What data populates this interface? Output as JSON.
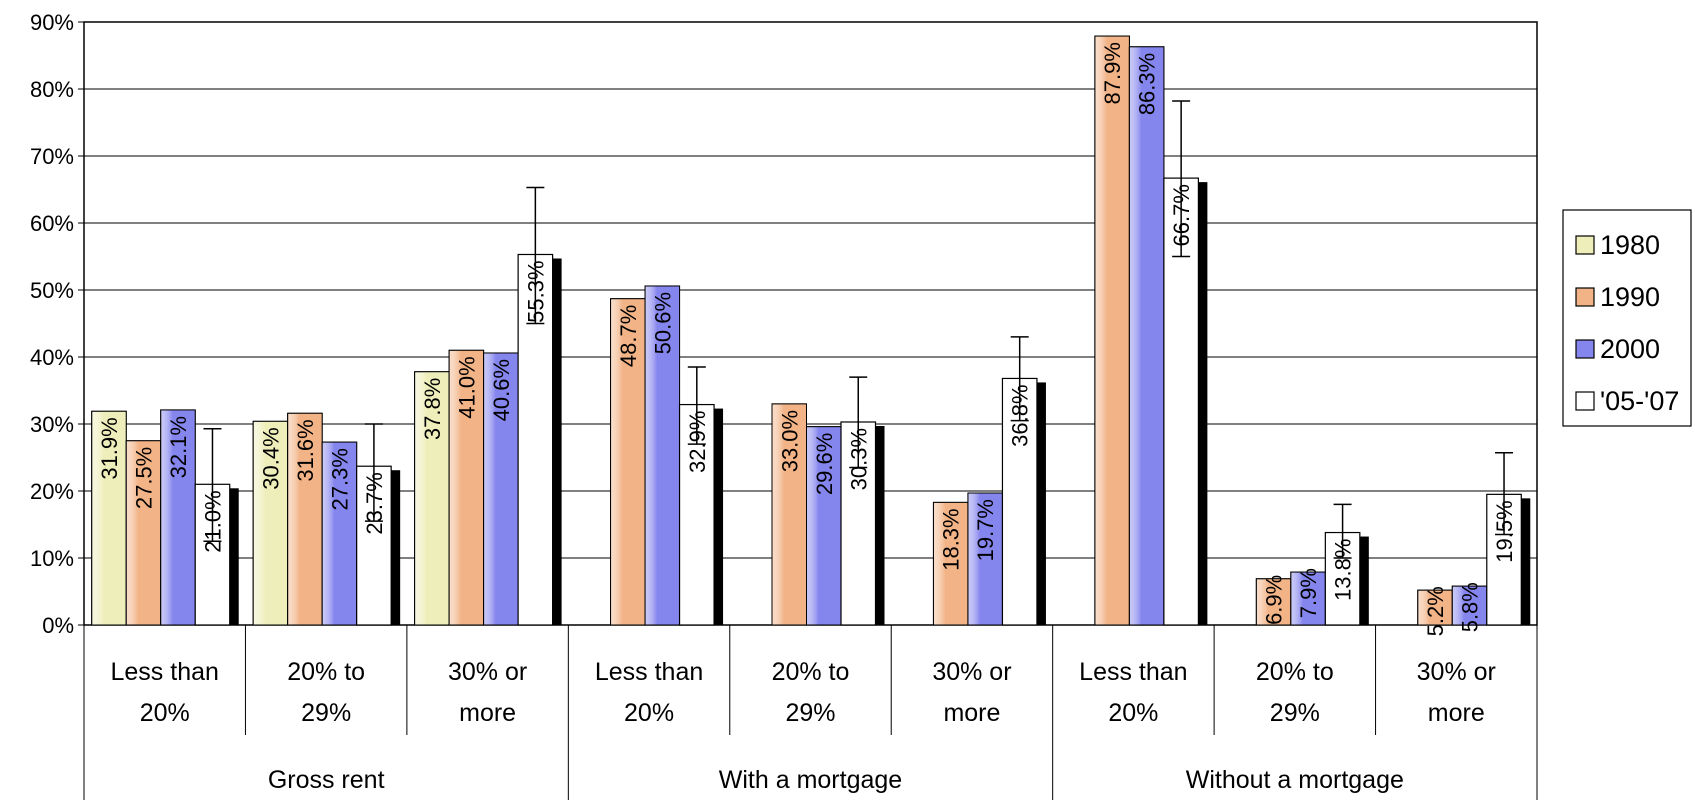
{
  "chart_data": {
    "type": "bar",
    "title": "",
    "xlabel": "",
    "ylabel": "",
    "ylim": [
      0,
      90
    ],
    "y_ticks": [
      "0%",
      "10%",
      "20%",
      "30%",
      "40%",
      "50%",
      "60%",
      "70%",
      "80%",
      "90%"
    ],
    "grid": true,
    "legend_position": "right",
    "groups": [
      {
        "label": "Gross rent",
        "categories": [
          [
            "Less than",
            "20%"
          ],
          [
            "20% to",
            "29%"
          ],
          [
            "30%  or",
            "more"
          ]
        ]
      },
      {
        "label": "With a mortgage",
        "categories": [
          [
            "Less than",
            "20%"
          ],
          [
            "20% to",
            "29%"
          ],
          [
            "30%  or",
            "more"
          ]
        ]
      },
      {
        "label": "Without a mortgage",
        "categories": [
          [
            "Less than",
            "20%"
          ],
          [
            "20% to",
            "29%"
          ],
          [
            "30%  or",
            "more"
          ]
        ]
      }
    ],
    "series": [
      {
        "name": "1980",
        "color": "#EEEEBB",
        "values": [
          31.9,
          30.4,
          37.8,
          null,
          null,
          null,
          null,
          null,
          null
        ],
        "labels": [
          "31.9%",
          "30.4%",
          "37.8%",
          null,
          null,
          null,
          null,
          null,
          null
        ]
      },
      {
        "name": "1990",
        "color": "#F2B386",
        "values": [
          27.5,
          31.6,
          41.0,
          48.7,
          33.0,
          18.3,
          87.9,
          6.9,
          5.2
        ],
        "labels": [
          "27.5%",
          "31.6%",
          "41.0%",
          "48.7%",
          "33.0%",
          "18.3%",
          "87.9%",
          "6.9%",
          "5.2%"
        ]
      },
      {
        "name": "2000",
        "color": "#8585EE",
        "values": [
          32.1,
          27.3,
          40.6,
          50.6,
          29.6,
          19.7,
          86.3,
          7.9,
          5.8
        ],
        "labels": [
          "32.1%",
          "27.3%",
          "40.6%",
          "50.6%",
          "29.6%",
          "19.7%",
          "86.3%",
          "7.9%",
          "5.8%"
        ]
      },
      {
        "name": "'05-'07",
        "color": "#FFFFFF",
        "values": [
          21.0,
          23.7,
          55.3,
          32.9,
          30.3,
          36.8,
          66.7,
          13.8,
          19.5
        ],
        "labels": [
          "21.0%",
          "23.7%",
          "55.3%",
          "32.9%",
          "30.3%",
          "36.8%",
          "66.7%",
          "13.8%",
          "19.5%"
        ],
        "error_low": [
          12.5,
          15.5,
          45.0,
          27.0,
          23.5,
          30.5,
          55.0,
          10.0,
          13.5
        ],
        "error_high": [
          29.3,
          30.0,
          65.3,
          38.5,
          37.0,
          43.0,
          78.2,
          18.0,
          25.7
        ]
      }
    ]
  }
}
